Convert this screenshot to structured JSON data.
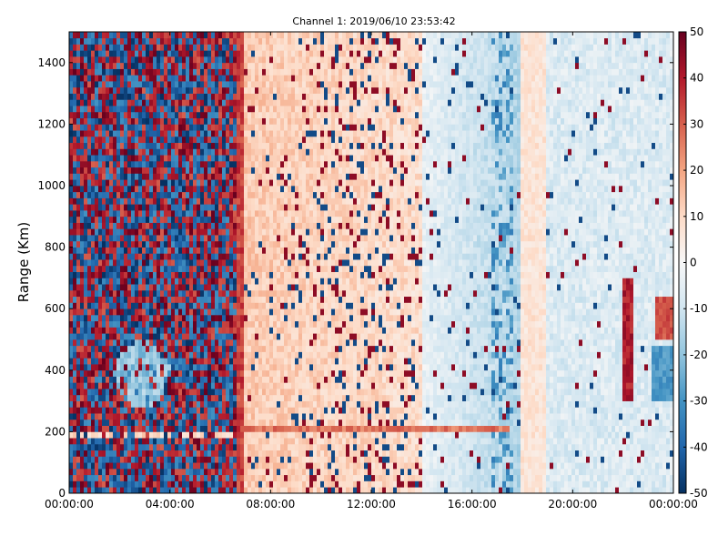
{
  "chart_data": {
    "type": "heatmap",
    "title": "Channel 1: 2019/06/10 23:53:42",
    "xlabel": "",
    "ylabel": "Range (Km)",
    "x_ticks": [
      "00:00:00",
      "04:00:00",
      "08:00:00",
      "12:00:00",
      "16:00:00",
      "20:00:00",
      "00:00:00"
    ],
    "x_range_hours": [
      0,
      24
    ],
    "y_ticks": [
      0,
      200,
      400,
      600,
      800,
      1000,
      1200,
      1400
    ],
    "ylim": [
      0,
      1500
    ],
    "colorbar": {
      "min": -50,
      "max": 50,
      "ticks": [
        50,
        40,
        30,
        20,
        10,
        0,
        -10,
        -20,
        -30,
        -40,
        -50
      ],
      "colormap": "RdBu_r",
      "colors": [
        "#053061",
        "#2166ac",
        "#4393c3",
        "#92c5de",
        "#d1e5f0",
        "#f7f7f7",
        "#fddbc7",
        "#f4a582",
        "#d6604d",
        "#b2182b",
        "#67001f"
      ]
    },
    "grid": false
  }
}
